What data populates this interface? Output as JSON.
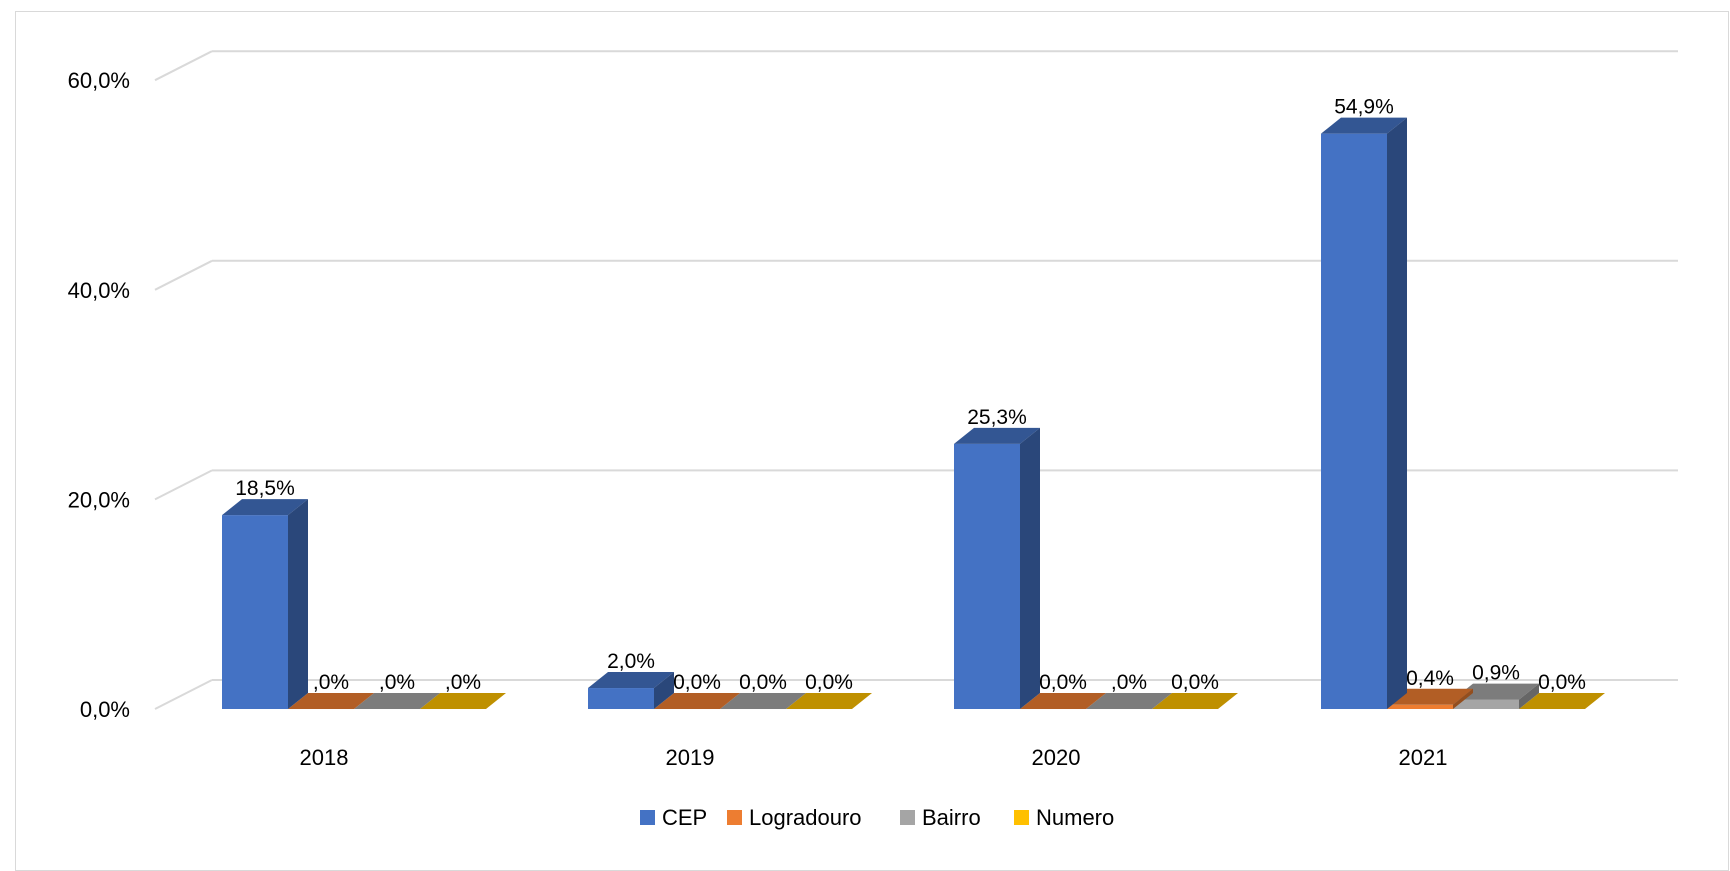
{
  "chart_data": {
    "type": "bar",
    "categories": [
      "2018",
      "2019",
      "2020",
      "2021"
    ],
    "series": [
      {
        "name": "CEP",
        "color": "#4472C4",
        "values": [
          18.5,
          2.0,
          25.3,
          54.9
        ],
        "labels": [
          "18,5%",
          "2,0%",
          "25,3%",
          "54,9%"
        ]
      },
      {
        "name": "Logradouro",
        "color": "#ED7D31",
        "values": [
          0.0,
          0.0,
          0.0,
          0.4
        ],
        "labels": [
          ",0%",
          "0,0%",
          "0,0%",
          "0,4%"
        ]
      },
      {
        "name": "Bairro",
        "color": "#A5A5A5",
        "values": [
          0.0,
          0.0,
          0.0,
          0.9
        ],
        "labels": [
          ",0%",
          "0,0%",
          ",0%",
          "0,9%"
        ]
      },
      {
        "name": "Numero",
        "color": "#FFC000",
        "values": [
          0.0,
          0.0,
          0.0,
          0.0
        ],
        "labels": [
          ",0%",
          "0,0%",
          "0,0%",
          "0,0%"
        ]
      }
    ],
    "y_ticks": [
      0,
      20,
      40,
      60
    ],
    "y_tick_labels": [
      "0,0%",
      "20,0%",
      "40,0%",
      "60,0%"
    ],
    "ylim": [
      0,
      60
    ],
    "grid": true,
    "style": "3d-clustered-column",
    "legend_position": "bottom",
    "title": "",
    "xlabel": "",
    "ylabel": ""
  }
}
